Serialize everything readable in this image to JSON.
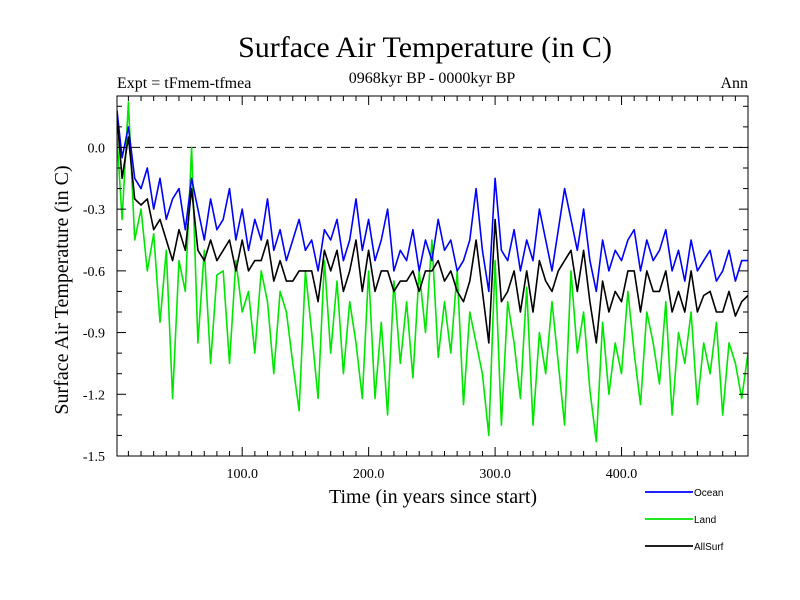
{
  "header": {
    "title": "Surface Air Temperature (in C)",
    "expt_label": "Expt = tFmem-tfmea",
    "period_label": "0968kyr BP - 0000kyr BP",
    "season_label": "Ann"
  },
  "chart_data": {
    "type": "line",
    "title": "Surface Air Temperature (in C)",
    "xlabel": "Time (in years since start)",
    "ylabel": "Surface Air Temperature (in C)",
    "xlim": [
      1,
      500
    ],
    "ylim": [
      -1.5,
      0.25
    ],
    "x_ticks": [
      100,
      200,
      300,
      400
    ],
    "x_tick_labels": [
      "100.0",
      "200.0",
      "300.0",
      "400.0"
    ],
    "y_ticks": [
      0.0,
      -0.3,
      -0.6,
      -0.9,
      -1.2,
      -1.5
    ],
    "y_tick_labels": [
      "0.0",
      "-0.3",
      "-0.6",
      "-0.9",
      "-1.2",
      "-1.5"
    ],
    "reference_line": {
      "y": 0.0,
      "style": "dashed"
    },
    "legend_position": "bottom-right",
    "series": [
      {
        "name": "Land",
        "color": "#00e600",
        "x": [
          1,
          5,
          10,
          15,
          20,
          25,
          30,
          35,
          40,
          45,
          50,
          55,
          60,
          65,
          70,
          75,
          80,
          85,
          90,
          95,
          100,
          105,
          110,
          115,
          120,
          125,
          130,
          135,
          140,
          145,
          150,
          155,
          160,
          165,
          170,
          175,
          180,
          185,
          190,
          195,
          200,
          205,
          210,
          215,
          220,
          225,
          230,
          235,
          240,
          245,
          250,
          255,
          260,
          265,
          270,
          275,
          280,
          285,
          290,
          295,
          300,
          305,
          310,
          315,
          320,
          325,
          330,
          335,
          340,
          345,
          350,
          355,
          360,
          365,
          370,
          375,
          380,
          385,
          390,
          395,
          400,
          405,
          410,
          415,
          420,
          425,
          430,
          435,
          440,
          445,
          450,
          455,
          460,
          465,
          470,
          475,
          480,
          485,
          490,
          495,
          500
        ],
        "values": [
          0.05,
          -0.35,
          0.22,
          -0.45,
          -0.3,
          -0.6,
          -0.42,
          -0.85,
          -0.5,
          -1.22,
          -0.55,
          -0.7,
          0.0,
          -0.95,
          -0.5,
          -1.05,
          -0.62,
          -0.6,
          -1.05,
          -0.55,
          -0.8,
          -0.7,
          -1.0,
          -0.6,
          -0.75,
          -1.1,
          -0.7,
          -0.8,
          -1.05,
          -1.28,
          -0.6,
          -0.9,
          -1.22,
          -0.55,
          -1.0,
          -0.65,
          -1.1,
          -0.75,
          -0.95,
          -1.22,
          -0.6,
          -1.22,
          -0.85,
          -1.3,
          -0.65,
          -1.05,
          -0.75,
          -1.12,
          -0.6,
          -0.9,
          -0.45,
          -1.02,
          -0.75,
          -1.0,
          -0.6,
          -1.25,
          -0.8,
          -0.95,
          -1.1,
          -1.4,
          -0.55,
          -1.35,
          -0.75,
          -0.95,
          -1.22,
          -0.68,
          -1.35,
          -0.9,
          -1.1,
          -0.75,
          -1.05,
          -1.35,
          -0.6,
          -1.0,
          -0.8,
          -1.18,
          -1.43,
          -0.85,
          -1.2,
          -0.95,
          -1.1,
          -0.7,
          -1.0,
          -1.25,
          -0.8,
          -0.95,
          -1.15,
          -0.75,
          -1.3,
          -0.9,
          -1.05,
          -0.8,
          -1.25,
          -0.95,
          -1.1,
          -0.85,
          -1.3,
          -0.95,
          -1.05,
          -1.22,
          -1.0
        ]
      },
      {
        "name": "Ocean",
        "color": "#0000ff",
        "x": [
          1,
          5,
          10,
          15,
          20,
          25,
          30,
          35,
          40,
          45,
          50,
          55,
          60,
          65,
          70,
          75,
          80,
          85,
          90,
          95,
          100,
          105,
          110,
          115,
          120,
          125,
          130,
          135,
          140,
          145,
          150,
          155,
          160,
          165,
          170,
          175,
          180,
          185,
          190,
          195,
          200,
          205,
          210,
          215,
          220,
          225,
          230,
          235,
          240,
          245,
          250,
          255,
          260,
          265,
          270,
          275,
          280,
          285,
          290,
          295,
          300,
          305,
          310,
          315,
          320,
          325,
          330,
          335,
          340,
          345,
          350,
          355,
          360,
          365,
          370,
          375,
          380,
          385,
          390,
          395,
          400,
          405,
          410,
          415,
          420,
          425,
          430,
          435,
          440,
          445,
          450,
          455,
          460,
          465,
          470,
          475,
          480,
          485,
          490,
          495,
          500
        ],
        "values": [
          0.18,
          -0.05,
          0.1,
          -0.15,
          -0.2,
          -0.1,
          -0.3,
          -0.15,
          -0.35,
          -0.25,
          -0.2,
          -0.4,
          -0.15,
          -0.3,
          -0.45,
          -0.25,
          -0.4,
          -0.35,
          -0.2,
          -0.45,
          -0.3,
          -0.5,
          -0.35,
          -0.45,
          -0.25,
          -0.5,
          -0.4,
          -0.55,
          -0.45,
          -0.35,
          -0.5,
          -0.45,
          -0.6,
          -0.4,
          -0.45,
          -0.35,
          -0.55,
          -0.45,
          -0.25,
          -0.5,
          -0.35,
          -0.55,
          -0.45,
          -0.3,
          -0.6,
          -0.5,
          -0.55,
          -0.4,
          -0.6,
          -0.45,
          -0.55,
          -0.35,
          -0.5,
          -0.45,
          -0.6,
          -0.55,
          -0.45,
          -0.2,
          -0.5,
          -0.7,
          -0.15,
          -0.5,
          -0.55,
          -0.4,
          -0.6,
          -0.45,
          -0.55,
          -0.3,
          -0.45,
          -0.6,
          -0.4,
          -0.2,
          -0.35,
          -0.5,
          -0.3,
          -0.55,
          -0.7,
          -0.45,
          -0.6,
          -0.5,
          -0.55,
          -0.45,
          -0.4,
          -0.6,
          -0.45,
          -0.55,
          -0.5,
          -0.4,
          -0.6,
          -0.5,
          -0.65,
          -0.45,
          -0.6,
          -0.55,
          -0.5,
          -0.65,
          -0.6,
          -0.5,
          -0.65,
          -0.55,
          -0.55
        ]
      },
      {
        "name": "AllSurf",
        "color": "#000000",
        "x": [
          1,
          5,
          10,
          15,
          20,
          25,
          30,
          35,
          40,
          45,
          50,
          55,
          60,
          65,
          70,
          75,
          80,
          85,
          90,
          95,
          100,
          105,
          110,
          115,
          120,
          125,
          130,
          135,
          140,
          145,
          150,
          155,
          160,
          165,
          170,
          175,
          180,
          185,
          190,
          195,
          200,
          205,
          210,
          215,
          220,
          225,
          230,
          235,
          240,
          245,
          250,
          255,
          260,
          265,
          270,
          275,
          280,
          285,
          290,
          295,
          300,
          305,
          310,
          315,
          320,
          325,
          330,
          335,
          340,
          345,
          350,
          355,
          360,
          365,
          370,
          375,
          380,
          385,
          390,
          395,
          400,
          405,
          410,
          415,
          420,
          425,
          430,
          435,
          440,
          445,
          450,
          455,
          460,
          465,
          470,
          475,
          480,
          485,
          490,
          495,
          500
        ],
        "values": [
          0.15,
          -0.15,
          0.05,
          -0.25,
          -0.28,
          -0.25,
          -0.4,
          -0.35,
          -0.45,
          -0.55,
          -0.4,
          -0.5,
          -0.2,
          -0.5,
          -0.55,
          -0.45,
          -0.55,
          -0.5,
          -0.45,
          -0.6,
          -0.45,
          -0.6,
          -0.55,
          -0.55,
          -0.45,
          -0.65,
          -0.55,
          -0.65,
          -0.65,
          -0.6,
          -0.6,
          -0.6,
          -0.75,
          -0.5,
          -0.6,
          -0.5,
          -0.7,
          -0.6,
          -0.45,
          -0.7,
          -0.5,
          -0.7,
          -0.6,
          -0.6,
          -0.7,
          -0.65,
          -0.65,
          -0.6,
          -0.7,
          -0.6,
          -0.6,
          -0.55,
          -0.65,
          -0.6,
          -0.7,
          -0.75,
          -0.65,
          -0.45,
          -0.7,
          -0.95,
          -0.35,
          -0.75,
          -0.7,
          -0.6,
          -0.8,
          -0.6,
          -0.8,
          -0.55,
          -0.65,
          -0.7,
          -0.6,
          -0.55,
          -0.5,
          -0.7,
          -0.5,
          -0.75,
          -0.95,
          -0.65,
          -0.8,
          -0.7,
          -0.75,
          -0.6,
          -0.6,
          -0.8,
          -0.6,
          -0.7,
          -0.7,
          -0.6,
          -0.8,
          -0.7,
          -0.8,
          -0.6,
          -0.8,
          -0.72,
          -0.7,
          -0.8,
          -0.8,
          -0.7,
          -0.82,
          -0.75,
          -0.72
        ]
      }
    ],
    "legend": [
      {
        "name": "Ocean",
        "color": "#0000ff"
      },
      {
        "name": "Land",
        "color": "#00e600"
      },
      {
        "name": "AllSurf",
        "color": "#000000"
      }
    ]
  }
}
